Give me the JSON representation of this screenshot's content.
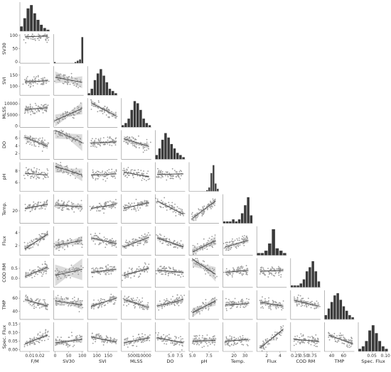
{
  "chart_data": {
    "type": "pairplot",
    "title": "",
    "corner": true,
    "diag_kind": "hist",
    "off_diag": "scatter with linear regression line and confidence band",
    "grid": false,
    "colors": {
      "points": "#9a9a9a",
      "line": "#444444",
      "band": "#cfcfcf",
      "hist": "#3a3a3a",
      "axis": "#888888"
    },
    "variables": [
      {
        "name": "F/M",
        "xticks": [
          "0.01",
          "0.02"
        ],
        "yticks": [],
        "range": [
          0.0,
          0.03
        ],
        "ytick_vals": []
      },
      {
        "name": "SV30",
        "xticks": [
          "0",
          "50",
          "100"
        ],
        "yticks": [
          "100",
          "50",
          "0"
        ],
        "range": [
          -5,
          105
        ],
        "ytick_vals": [
          100,
          50,
          0
        ]
      },
      {
        "name": "SVI",
        "xticks": [
          "100",
          "150"
        ],
        "yticks": [
          "150",
          "100"
        ],
        "range": [
          60,
          190
        ],
        "ytick_vals": [
          150,
          100
        ]
      },
      {
        "name": "MLSS",
        "xticks": [
          "5000",
          "10000"
        ],
        "yticks": [
          "10000",
          "5000",
          "0"
        ],
        "range": [
          0,
          13000
        ],
        "ytick_vals": [
          10000,
          5000,
          0
        ]
      },
      {
        "name": "DO",
        "xticks": [
          "5.0",
          "7.5"
        ],
        "yticks": [
          "6",
          "4",
          "2"
        ],
        "range": [
          0.5,
          9
        ],
        "ytick_vals": [
          6,
          4,
          2
        ]
      },
      {
        "name": "pH",
        "xticks": [
          "5.0",
          "7.5"
        ],
        "yticks": [
          "8",
          "6"
        ],
        "range": [
          4.5,
          9
        ],
        "ytick_vals": [
          8,
          6
        ]
      },
      {
        "name": "Temp.",
        "xticks": [
          "20",
          "30"
        ],
        "yticks": [
          "20"
        ],
        "range": [
          10,
          37
        ],
        "ytick_vals": [
          20
        ]
      },
      {
        "name": "Flux",
        "xticks": [
          "2",
          "4"
        ],
        "yticks": [
          "4",
          "2"
        ],
        "range": [
          0.5,
          5
        ],
        "ytick_vals": [
          4,
          2
        ]
      },
      {
        "name": "COD RM",
        "xticks": [
          "0.25",
          "0.50",
          "0.75"
        ],
        "yticks": [
          "0.5",
          "0.0"
        ],
        "range": [
          0.1,
          1.0
        ],
        "ytick_vals": [
          0.5,
          0.0
        ]
      },
      {
        "name": "TMP",
        "xticks": [
          "40",
          "60"
        ],
        "yticks": [
          "60",
          "40"
        ],
        "range": [
          28,
          78
        ],
        "ytick_vals": [
          60,
          40
        ]
      },
      {
        "name": "Spec. Flux",
        "xticks": [
          "0.05",
          "0.10"
        ],
        "yticks": [
          "0.15",
          "0.10",
          "0.05",
          "0.00"
        ],
        "range": [
          0.0,
          0.11
        ],
        "ytick_vals": [
          0.15,
          0.1,
          0.05,
          0.0
        ]
      }
    ],
    "y_ranges": {
      "SV30": [
        -5,
        105
      ],
      "SVI": [
        60,
        190
      ],
      "MLSS": [
        -500,
        12500
      ],
      "DO": [
        0.5,
        8
      ],
      "pH": [
        4.5,
        9.5
      ],
      "Temp.": [
        5,
        40
      ],
      "Flux": [
        0.5,
        5
      ],
      "COD RM": [
        -0.45,
        1.0
      ],
      "TMP": [
        28,
        72
      ],
      "Spec. Flux": [
        -0.01,
        0.16
      ]
    },
    "diagonal_histograms": {
      "F/M": [
        3,
        8,
        14,
        16,
        11,
        7,
        4,
        2,
        1
      ],
      "SV30": [
        1,
        0,
        0,
        0,
        0,
        0,
        0,
        0,
        0,
        1,
        2,
        3,
        20
      ],
      "SVI": [
        1,
        3,
        7,
        10,
        12,
        9,
        6,
        3,
        2,
        1
      ],
      "MLSS": [
        1,
        2,
        4,
        8,
        12,
        11,
        8,
        4,
        2,
        1
      ],
      "DO": [
        2,
        5,
        9,
        12,
        10,
        7,
        5,
        3,
        2,
        1
      ],
      "pH": [
        0,
        0,
        0,
        0,
        0,
        0,
        0,
        0,
        1,
        3,
        14,
        20,
        6,
        2
      ],
      "Temp.": [
        1,
        1,
        1,
        2,
        1,
        2,
        5,
        9,
        13,
        4
      ],
      "Flux": [
        1,
        1,
        2,
        5,
        11,
        3,
        2,
        1
      ],
      "COD RM": [
        1,
        1,
        1,
        2,
        4,
        8,
        10,
        13,
        8,
        3
      ],
      "TMP": [
        2,
        5,
        8,
        11,
        12,
        9,
        6,
        4,
        2,
        1
      ],
      "Spec. Flux": [
        1,
        2,
        4,
        8,
        10,
        7,
        4,
        2,
        1
      ]
    },
    "regression_lines": [
      {
        "x": "F/M",
        "y": "SV30",
        "x0": 0.005,
        "y0": 95,
        "x1": 0.028,
        "y1": 98,
        "band": 3
      },
      {
        "x": "F/M",
        "y": "SVI",
        "x0": 0.005,
        "y0": 120,
        "x1": 0.028,
        "y1": 125,
        "band": 5
      },
      {
        "x": "SV30",
        "y": "SVI",
        "x0": 0,
        "y0": 140,
        "x1": 100,
        "y1": 118,
        "band": 15
      },
      {
        "x": "F/M",
        "y": "MLSS",
        "x0": 0.005,
        "y0": 7500,
        "x1": 0.028,
        "y1": 8200,
        "band": 500
      },
      {
        "x": "SV30",
        "y": "MLSS",
        "x0": 0,
        "y0": 2500,
        "x1": 100,
        "y1": 8000,
        "band": 1500
      },
      {
        "x": "SVI",
        "y": "MLSS",
        "x0": 75,
        "y0": 10500,
        "x1": 185,
        "y1": 4500,
        "band": 700
      },
      {
        "x": "F/M",
        "y": "DO",
        "x0": 0.005,
        "y0": 6.2,
        "x1": 0.028,
        "y1": 3.8,
        "band": 0.4
      },
      {
        "x": "SV30",
        "y": "DO",
        "x0": 0,
        "y0": 8.0,
        "x1": 100,
        "y1": 4.8,
        "band": 1.2
      },
      {
        "x": "SVI",
        "y": "DO",
        "x0": 75,
        "y0": 4.7,
        "x1": 185,
        "y1": 5.0,
        "band": 0.3
      },
      {
        "x": "MLSS",
        "y": "DO",
        "x0": 1000,
        "y0": 5.8,
        "x1": 12000,
        "y1": 3.8,
        "band": 0.4
      },
      {
        "x": "F/M",
        "y": "pH",
        "x0": 0.005,
        "y0": 7.6,
        "x1": 0.028,
        "y1": 7.3,
        "band": 0.1
      },
      {
        "x": "SV30",
        "y": "pH",
        "x0": 0,
        "y0": 8.8,
        "x1": 100,
        "y1": 7.3,
        "band": 0.6
      },
      {
        "x": "SVI",
        "y": "pH",
        "x0": 75,
        "y0": 7.3,
        "x1": 185,
        "y1": 7.5,
        "band": 0.1
      },
      {
        "x": "MLSS",
        "y": "pH",
        "x0": 1000,
        "y0": 7.8,
        "x1": 12000,
        "y1": 7.0,
        "band": 0.1
      },
      {
        "x": "DO",
        "y": "pH",
        "x0": 1,
        "y0": 7.4,
        "x1": 8.5,
        "y1": 7.5,
        "band": 0.1
      },
      {
        "x": "F/M",
        "y": "Temp.",
        "x0": 0.005,
        "y0": 23,
        "x1": 0.028,
        "y1": 28,
        "band": 1
      },
      {
        "x": "SV30",
        "y": "Temp.",
        "x0": 0,
        "y0": 27,
        "x1": 100,
        "y1": 25,
        "band": 2
      },
      {
        "x": "SVI",
        "y": "Temp.",
        "x0": 75,
        "y0": 23,
        "x1": 185,
        "y1": 28,
        "band": 1
      },
      {
        "x": "MLSS",
        "y": "Temp.",
        "x0": 1000,
        "y0": 23,
        "x1": 12000,
        "y1": 30,
        "band": 1
      },
      {
        "x": "DO",
        "y": "Temp.",
        "x0": 1,
        "y0": 32,
        "x1": 8.5,
        "y1": 16,
        "band": 1
      },
      {
        "x": "pH",
        "y": "Temp.",
        "x0": 5,
        "y0": 11,
        "x1": 8.5,
        "y1": 32,
        "band": 2
      },
      {
        "x": "F/M",
        "y": "Flux",
        "x0": 0.005,
        "y0": 1.5,
        "x1": 0.028,
        "y1": 3.8,
        "band": 0.2
      },
      {
        "x": "SV30",
        "y": "Flux",
        "x0": 0,
        "y0": 2.0,
        "x1": 100,
        "y1": 2.8,
        "band": 0.4
      },
      {
        "x": "SVI",
        "y": "Flux",
        "x0": 75,
        "y0": 3.2,
        "x1": 185,
        "y1": 2.3,
        "band": 0.2
      },
      {
        "x": "MLSS",
        "y": "Flux",
        "x0": 1000,
        "y0": 1.8,
        "x1": 12000,
        "y1": 3.3,
        "band": 0.2
      },
      {
        "x": "DO",
        "y": "Flux",
        "x0": 1,
        "y0": 3.2,
        "x1": 8.5,
        "y1": 1.8,
        "band": 0.2
      },
      {
        "x": "pH",
        "y": "Flux",
        "x0": 5,
        "y0": 1.0,
        "x1": 8.5,
        "y1": 2.8,
        "band": 0.4
      },
      {
        "x": "Temp.",
        "y": "Flux",
        "x0": 12,
        "y0": 1.8,
        "x1": 33,
        "y1": 2.8,
        "band": 0.2
      },
      {
        "x": "F/M",
        "y": "COD RM",
        "x0": 0.005,
        "y0": 0.1,
        "x1": 0.028,
        "y1": 0.55,
        "band": 0.07
      },
      {
        "x": "SV30",
        "y": "COD RM",
        "x0": 0,
        "y0": 0.15,
        "x1": 100,
        "y1": 0.45,
        "band": 0.3
      },
      {
        "x": "SVI",
        "y": "COD RM",
        "x0": 75,
        "y0": 0.3,
        "x1": 185,
        "y1": 0.45,
        "band": 0.05
      },
      {
        "x": "MLSS",
        "y": "COD RM",
        "x0": 1000,
        "y0": 0.15,
        "x1": 12000,
        "y1": 0.5,
        "band": 0.05
      },
      {
        "x": "DO",
        "y": "COD RM",
        "x0": 1,
        "y0": 0.4,
        "x1": 8.5,
        "y1": 0.3,
        "band": 0.05
      },
      {
        "x": "pH",
        "y": "COD RM",
        "x0": 5,
        "y0": 0.95,
        "x1": 8.5,
        "y1": 0.2,
        "band": 0.2
      },
      {
        "x": "Temp.",
        "y": "COD RM",
        "x0": 12,
        "y0": 0.3,
        "x1": 33,
        "y1": 0.4,
        "band": 0.06
      },
      {
        "x": "Flux",
        "y": "COD RM",
        "x0": 1,
        "y0": 0.35,
        "x1": 4.5,
        "y1": 0.4,
        "band": 0.05
      },
      {
        "x": "F/M",
        "y": "TMP",
        "x0": 0.005,
        "y0": 58,
        "x1": 0.028,
        "y1": 48,
        "band": 2
      },
      {
        "x": "SV30",
        "y": "TMP",
        "x0": 0,
        "y0": 56,
        "x1": 100,
        "y1": 50,
        "band": 4
      },
      {
        "x": "SVI",
        "y": "TMP",
        "x0": 75,
        "y0": 48,
        "x1": 185,
        "y1": 60,
        "band": 2
      },
      {
        "x": "MLSS",
        "y": "TMP",
        "x0": 1000,
        "y0": 58,
        "x1": 12000,
        "y1": 46,
        "band": 2
      },
      {
        "x": "DO",
        "y": "TMP",
        "x0": 1,
        "y0": 48,
        "x1": 8.5,
        "y1": 58,
        "band": 2
      },
      {
        "x": "pH",
        "y": "TMP",
        "x0": 5,
        "y0": 38,
        "x1": 8.5,
        "y1": 56,
        "band": 4
      },
      {
        "x": "Temp.",
        "y": "TMP",
        "x0": 12,
        "y0": 50,
        "x1": 33,
        "y1": 52,
        "band": 2
      },
      {
        "x": "Flux",
        "y": "TMP",
        "x0": 1,
        "y0": 54,
        "x1": 4.5,
        "y1": 48,
        "band": 2
      },
      {
        "x": "COD RM",
        "y": "TMP",
        "x0": 0.2,
        "y0": 57,
        "x1": 0.95,
        "y1": 48,
        "band": 2
      },
      {
        "x": "F/M",
        "y": "Spec. Flux",
        "x0": 0.005,
        "y0": 0.035,
        "x1": 0.028,
        "y1": 0.085,
        "band": 0.006
      },
      {
        "x": "SV30",
        "y": "Spec. Flux",
        "x0": 0,
        "y0": 0.04,
        "x1": 100,
        "y1": 0.06,
        "band": 0.01
      },
      {
        "x": "SVI",
        "y": "Spec. Flux",
        "x0": 75,
        "y0": 0.075,
        "x1": 185,
        "y1": 0.045,
        "band": 0.006
      },
      {
        "x": "MLSS",
        "y": "Spec. Flux",
        "x0": 1000,
        "y0": 0.04,
        "x1": 12000,
        "y1": 0.07,
        "band": 0.006
      },
      {
        "x": "DO",
        "y": "Spec. Flux",
        "x0": 1,
        "y0": 0.07,
        "x1": 8.5,
        "y1": 0.04,
        "band": 0.006
      },
      {
        "x": "pH",
        "y": "Spec. Flux",
        "x0": 5,
        "y0": 0.05,
        "x1": 8.5,
        "y1": 0.055,
        "band": 0.01
      },
      {
        "x": "Temp.",
        "y": "Spec. Flux",
        "x0": 12,
        "y0": 0.05,
        "x1": 33,
        "y1": 0.06,
        "band": 0.006
      },
      {
        "x": "Flux",
        "y": "Spec. Flux",
        "x0": 1,
        "y0": 0.01,
        "x1": 4.5,
        "y1": 0.12,
        "band": 0.004
      },
      {
        "x": "COD RM",
        "y": "Spec. Flux",
        "x0": 0.2,
        "y0": 0.06,
        "x1": 0.95,
        "y1": 0.05,
        "band": 0.005
      },
      {
        "x": "TMP",
        "y": "Spec. Flux",
        "x0": 35,
        "y0": 0.085,
        "x1": 75,
        "y1": 0.035,
        "band": 0.006
      }
    ]
  }
}
